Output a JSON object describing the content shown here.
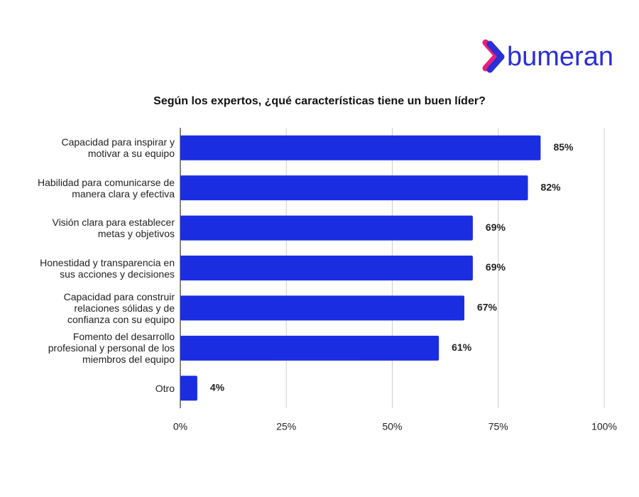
{
  "logo": "bumeran",
  "chart_data": {
    "type": "bar",
    "orientation": "horizontal",
    "title": "Según los expertos, ¿qué características tiene un buen líder?",
    "categories": [
      "Capacidad para inspirar y motivar a su equipo",
      "Habilidad para comunicarse de manera clara y efectiva",
      "Visión clara para establecer metas y objetivos",
      "Honestidad y transparencia en sus acciones y decisiones",
      "Capacidad para construir relaciones sólidas y de confianza con su equipo",
      "Fomento del desarrollo profesional y personal de los miembros del equipo",
      "Otro"
    ],
    "values": [
      85,
      82,
      69,
      69,
      67,
      61,
      4
    ],
    "value_labels": [
      "85%",
      "82%",
      "69%",
      "69%",
      "67%",
      "61%",
      "4%"
    ],
    "color": "#1b2de0",
    "xlim": [
      0,
      100
    ],
    "xticks": [
      {
        "value": 0,
        "label": "0%"
      },
      {
        "value": 25,
        "label": "25%"
      },
      {
        "value": 50,
        "label": "50%"
      },
      {
        "value": 75,
        "label": "75%"
      },
      {
        "value": 100,
        "label": "100%"
      }
    ],
    "grid": true
  }
}
